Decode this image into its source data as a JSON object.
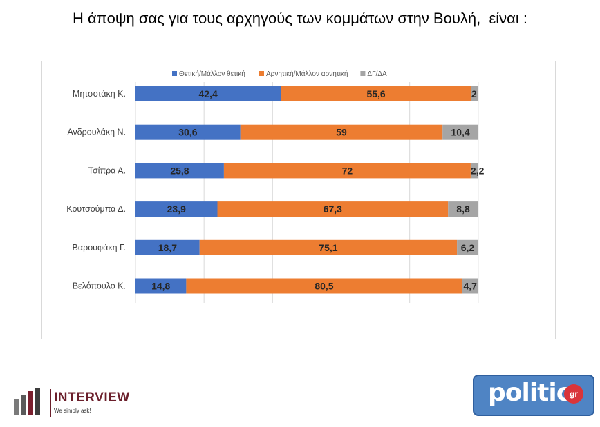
{
  "page": {
    "title": "Η άποψη σας για τους αρχηγούς των κομμάτων στην Βουλή,  είναι :"
  },
  "chart_data": {
    "type": "bar",
    "orientation": "horizontal",
    "stacked": true,
    "title": "",
    "xlabel": "",
    "ylabel": "",
    "xlim": [
      0,
      100
    ],
    "grid": true,
    "legend_position": "top",
    "categories": [
      "Μητσοτάκη Κ.",
      "Ανδρουλάκη Ν.",
      "Τσίπρα Α.",
      "Κουτσούμπα Δ.",
      "Βαρουφάκη Γ.",
      "Βελόπουλο Κ."
    ],
    "series": [
      {
        "name": "Θετική/Μάλλον θετική",
        "color": "#4472c4",
        "values": [
          42.4,
          30.6,
          25.8,
          23.9,
          18.7,
          14.8
        ]
      },
      {
        "name": "Αρνητική/Μάλλον αρνητική",
        "color": "#ed7d31",
        "values": [
          55.6,
          59,
          72,
          67.3,
          75.1,
          80.5
        ]
      },
      {
        "name": "ΔΓ/ΔΑ",
        "color": "#a5a5a5",
        "values": [
          2,
          10.4,
          2.2,
          8.8,
          6.2,
          4.7
        ]
      }
    ],
    "data_labels": [
      [
        "42,4",
        "55,6",
        "2"
      ],
      [
        "30,6",
        "59",
        "10,4"
      ],
      [
        "25,8",
        "72",
        "2,2"
      ],
      [
        "23,9",
        "67,3",
        "8,8"
      ],
      [
        "18,7",
        "75,1",
        "6,2"
      ],
      [
        "14,8",
        "80,5",
        "4,7"
      ]
    ]
  },
  "logos": {
    "interview": {
      "name": "INTERVIEW",
      "tagline": "We simply ask!",
      "color": "#6b1f2b"
    },
    "politic": {
      "word": "politic",
      "badge": "gr",
      "color": "#4f84c4"
    }
  }
}
